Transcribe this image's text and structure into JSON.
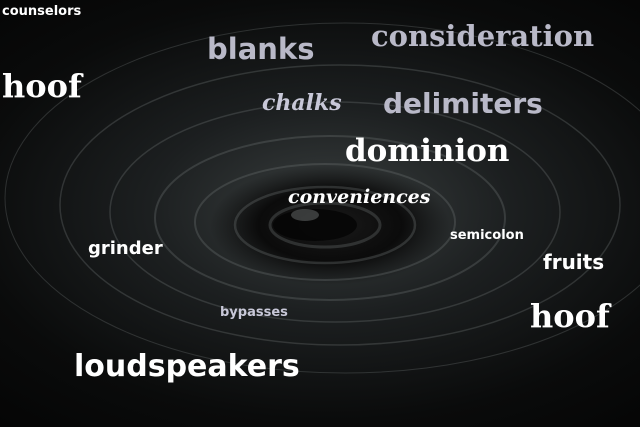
{
  "words": {
    "counselors": "counselors",
    "blanks": "blanks",
    "consideration": "consideration",
    "hoof_left": "hoof",
    "chalks": "chalks",
    "delimiters": "delimiters",
    "dominion": "dominion",
    "conveniences": "conveniences",
    "grinder": "grinder",
    "semicolon": "semicolon",
    "fruits": "fruits",
    "bypasses": "bypasses",
    "hoof_right": "hoof",
    "loudspeakers": "loudspeakers"
  },
  "colors": {
    "primary_text": "#ffffff",
    "muted_text": "#b9b9c8",
    "background": "#0a0b0b"
  }
}
